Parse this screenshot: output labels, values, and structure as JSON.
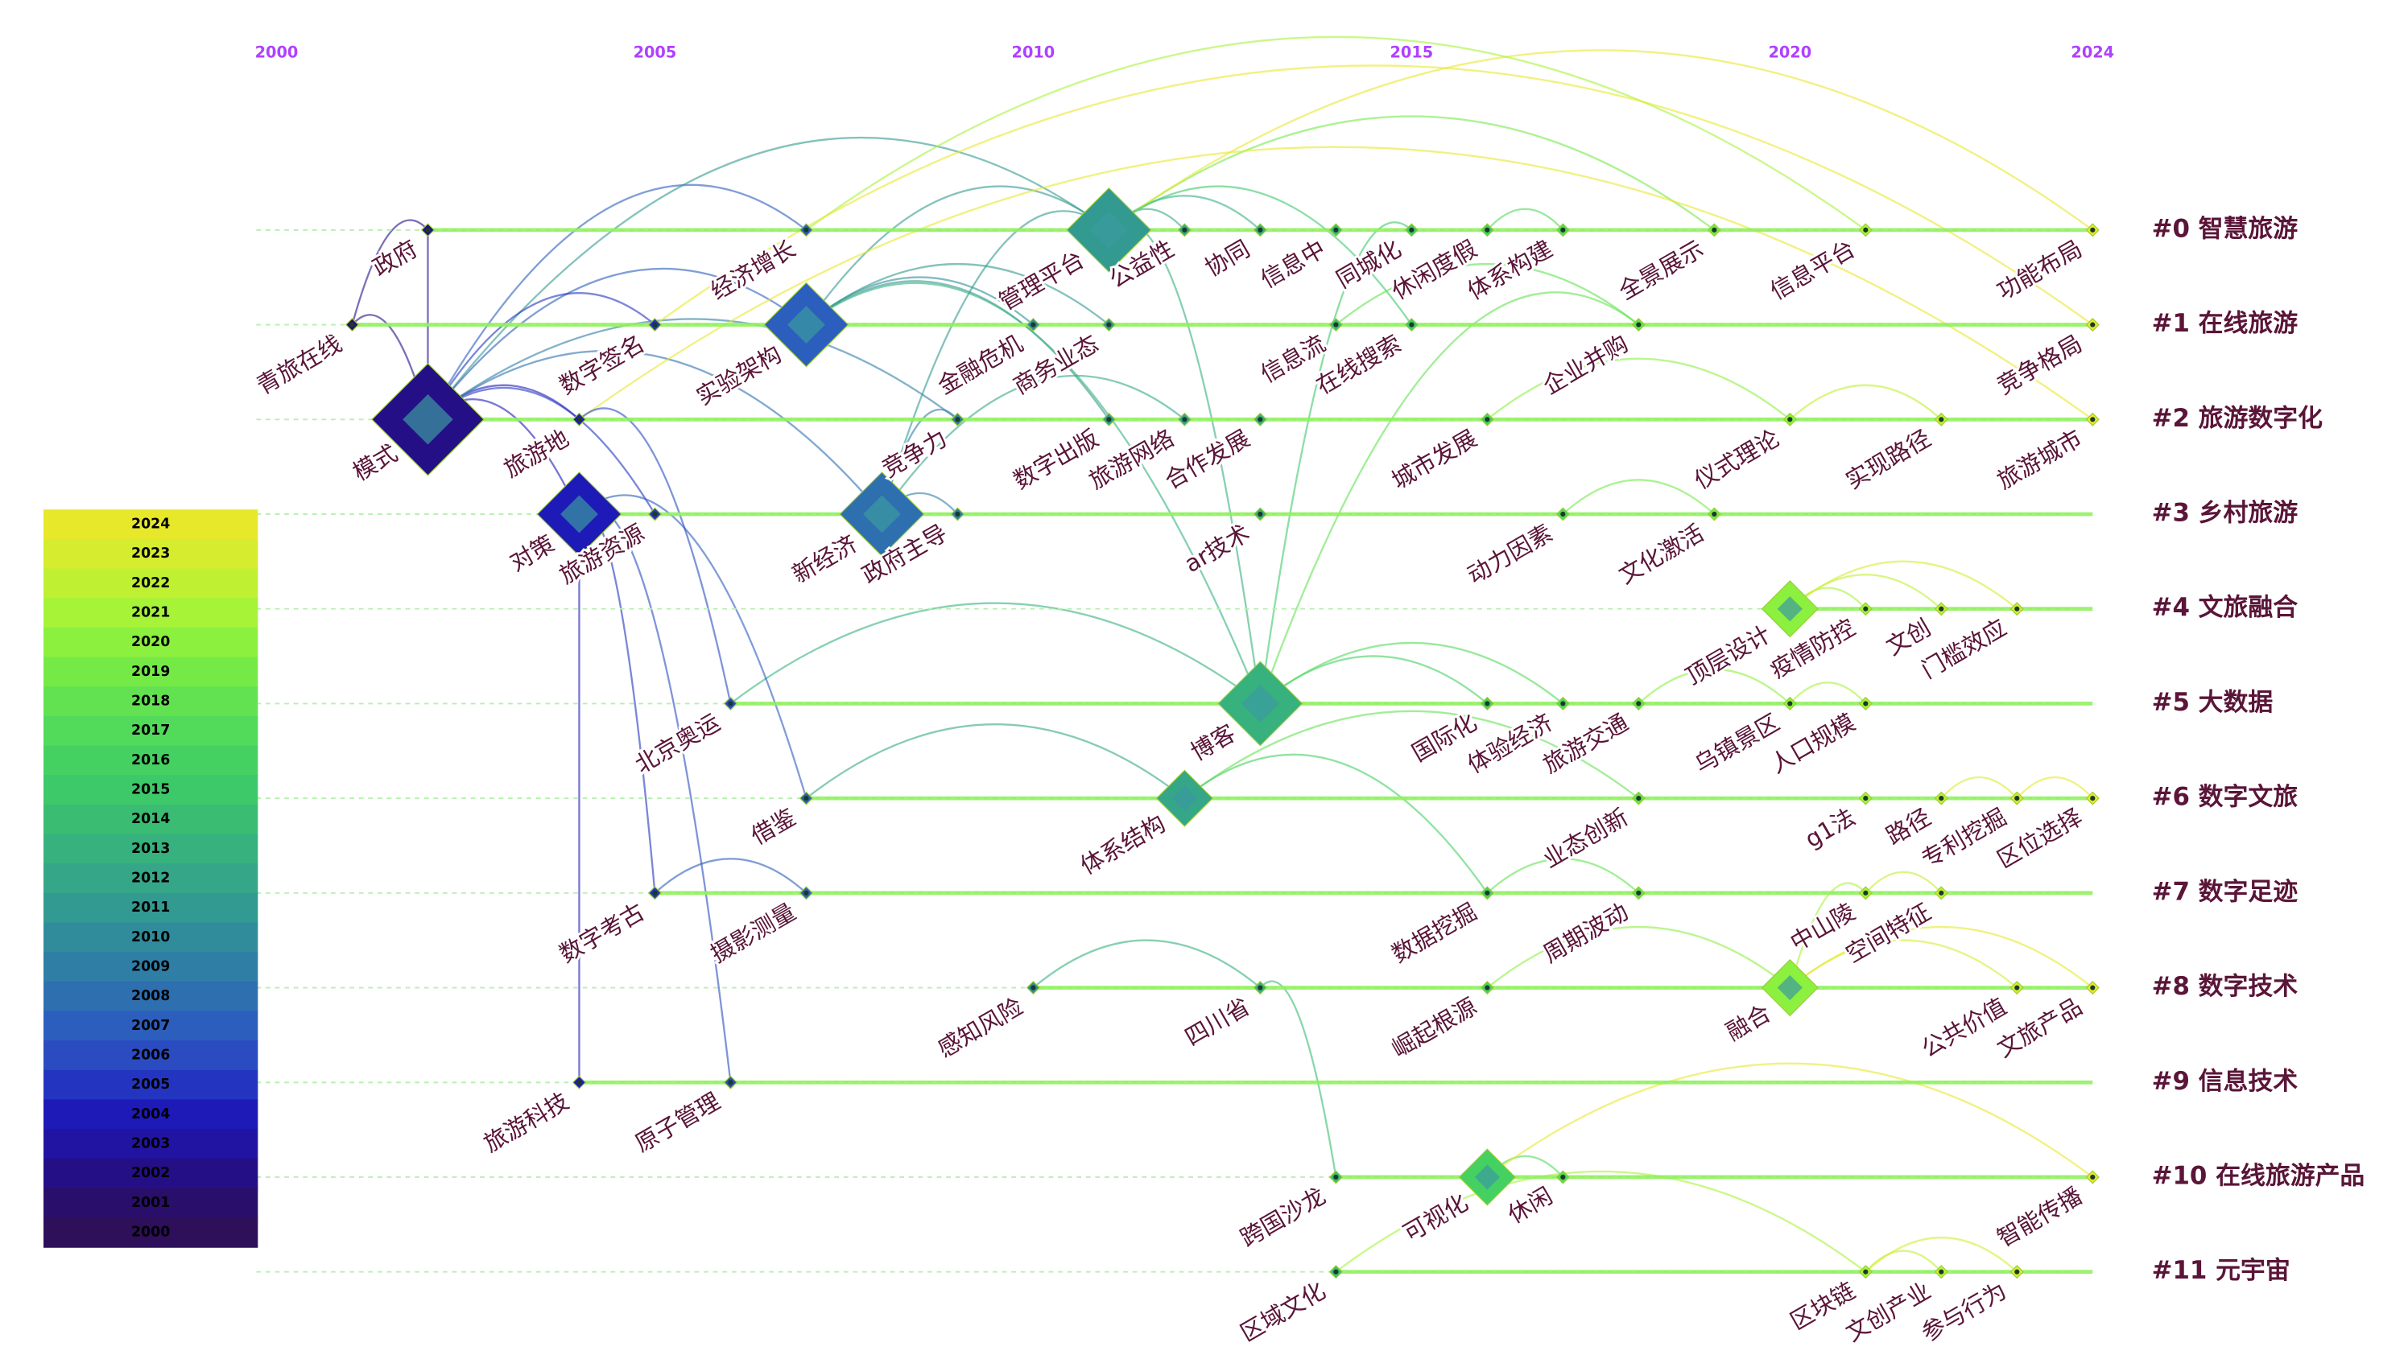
{
  "chart_data": {
    "type": "timeline",
    "xlim": [
      2000,
      2024
    ],
    "xticks": [
      2000,
      2005,
      2010,
      2015,
      2020,
      2024
    ],
    "clusters": [
      "#0 智慧旅游",
      "#1 在线旅游",
      "#2 旅游数字化",
      "#3 乡村旅游",
      "#4 文旅融合",
      "#5 大数据",
      "#6 数字文旅",
      "#7 数字足迹",
      "#8 数字技术",
      "#9 信息技术",
      "#10 在线旅游产品",
      "#11 元宇宙"
    ],
    "keywords": [
      {
        "label": "政府",
        "cluster": 0,
        "year": 2002,
        "size": 1
      },
      {
        "label": "经济增长",
        "cluster": 0,
        "year": 2007,
        "size": 1
      },
      {
        "label": "管理平台",
        "cluster": 0,
        "year": 2011,
        "size": 3
      },
      {
        "label": "公益性",
        "cluster": 0,
        "year": 2012,
        "size": 1
      },
      {
        "label": "协同",
        "cluster": 0,
        "year": 2013,
        "size": 1
      },
      {
        "label": "信息中",
        "cluster": 0,
        "year": 2014,
        "size": 1
      },
      {
        "label": "同城化",
        "cluster": 0,
        "year": 2015,
        "size": 1
      },
      {
        "label": "休闲度假",
        "cluster": 0,
        "year": 2016,
        "size": 1
      },
      {
        "label": "体系构建",
        "cluster": 0,
        "year": 2017,
        "size": 1
      },
      {
        "label": "全景展示",
        "cluster": 0,
        "year": 2019,
        "size": 1
      },
      {
        "label": "信息平台",
        "cluster": 0,
        "year": 2021,
        "size": 1
      },
      {
        "label": "功能布局",
        "cluster": 0,
        "year": 2024,
        "size": 1
      },
      {
        "label": "青旅在线",
        "cluster": 1,
        "year": 2001,
        "size": 1
      },
      {
        "label": "数字签名",
        "cluster": 1,
        "year": 2005,
        "size": 1
      },
      {
        "label": "实验架构",
        "cluster": 1,
        "year": 2007,
        "size": 3
      },
      {
        "label": "金融危机",
        "cluster": 1,
        "year": 2010,
        "size": 1
      },
      {
        "label": "商务业态",
        "cluster": 1,
        "year": 2011,
        "size": 1
      },
      {
        "label": "信息流",
        "cluster": 1,
        "year": 2014,
        "size": 1
      },
      {
        "label": "在线搜索",
        "cluster": 1,
        "year": 2015,
        "size": 1
      },
      {
        "label": "企业并购",
        "cluster": 1,
        "year": 2018,
        "size": 1
      },
      {
        "label": "竞争格局",
        "cluster": 1,
        "year": 2024,
        "size": 1
      },
      {
        "label": "模式",
        "cluster": 2,
        "year": 2002,
        "size": 4
      },
      {
        "label": "旅游地",
        "cluster": 2,
        "year": 2004,
        "size": 1
      },
      {
        "label": "竞争力",
        "cluster": 2,
        "year": 2009,
        "size": 1
      },
      {
        "label": "数字出版",
        "cluster": 2,
        "year": 2011,
        "size": 1
      },
      {
        "label": "旅游网络",
        "cluster": 2,
        "year": 2012,
        "size": 1
      },
      {
        "label": "合作发展",
        "cluster": 2,
        "year": 2013,
        "size": 1
      },
      {
        "label": "城市发展",
        "cluster": 2,
        "year": 2016,
        "size": 1
      },
      {
        "label": "仪式理论",
        "cluster": 2,
        "year": 2020,
        "size": 1
      },
      {
        "label": "实现路径",
        "cluster": 2,
        "year": 2022,
        "size": 1
      },
      {
        "label": "旅游城市",
        "cluster": 2,
        "year": 2024,
        "size": 1
      },
      {
        "label": "对策",
        "cluster": 3,
        "year": 2004,
        "size": 3
      },
      {
        "label": "旅游资源",
        "cluster": 3,
        "year": 2005,
        "size": 1
      },
      {
        "label": "新经济",
        "cluster": 3,
        "year": 2008,
        "size": 3
      },
      {
        "label": "政府主导",
        "cluster": 3,
        "year": 2009,
        "size": 1
      },
      {
        "label": "ar技术",
        "cluster": 3,
        "year": 2013,
        "size": 1
      },
      {
        "label": "动力因素",
        "cluster": 3,
        "year": 2017,
        "size": 1
      },
      {
        "label": "文化激活",
        "cluster": 3,
        "year": 2019,
        "size": 1
      },
      {
        "label": "顶层设计",
        "cluster": 4,
        "year": 2020,
        "size": 2
      },
      {
        "label": "疫情防控",
        "cluster": 4,
        "year": 2021,
        "size": 1
      },
      {
        "label": "文创",
        "cluster": 4,
        "year": 2022,
        "size": 1
      },
      {
        "label": "门槛效应",
        "cluster": 4,
        "year": 2023,
        "size": 1
      },
      {
        "label": "北京奥运",
        "cluster": 5,
        "year": 2006,
        "size": 1
      },
      {
        "label": "博客",
        "cluster": 5,
        "year": 2013,
        "size": 3
      },
      {
        "label": "国际化",
        "cluster": 5,
        "year": 2016,
        "size": 1
      },
      {
        "label": "体验经济",
        "cluster": 5,
        "year": 2017,
        "size": 1
      },
      {
        "label": "旅游交通",
        "cluster": 5,
        "year": 2018,
        "size": 1
      },
      {
        "label": "乌镇景区",
        "cluster": 5,
        "year": 2020,
        "size": 1
      },
      {
        "label": "人口规模",
        "cluster": 5,
        "year": 2021,
        "size": 1
      },
      {
        "label": "借鉴",
        "cluster": 6,
        "year": 2007,
        "size": 1
      },
      {
        "label": "体系结构",
        "cluster": 6,
        "year": 2012,
        "size": 2
      },
      {
        "label": "业态创新",
        "cluster": 6,
        "year": 2018,
        "size": 1
      },
      {
        "label": "g1法",
        "cluster": 6,
        "year": 2021,
        "size": 1
      },
      {
        "label": "路径",
        "cluster": 6,
        "year": 2022,
        "size": 1
      },
      {
        "label": "专利挖掘",
        "cluster": 6,
        "year": 2023,
        "size": 1
      },
      {
        "label": "区位选择",
        "cluster": 6,
        "year": 2024,
        "size": 1
      },
      {
        "label": "数字考古",
        "cluster": 7,
        "year": 2005,
        "size": 1
      },
      {
        "label": "摄影测量",
        "cluster": 7,
        "year": 2007,
        "size": 1
      },
      {
        "label": "数据挖掘",
        "cluster": 7,
        "year": 2016,
        "size": 1
      },
      {
        "label": "周期波动",
        "cluster": 7,
        "year": 2018,
        "size": 1
      },
      {
        "label": "中山陵",
        "cluster": 7,
        "year": 2021,
        "size": 1
      },
      {
        "label": "空间特征",
        "cluster": 7,
        "year": 2022,
        "size": 1
      },
      {
        "label": "感知风险",
        "cluster": 8,
        "year": 2010,
        "size": 1
      },
      {
        "label": "四川省",
        "cluster": 8,
        "year": 2013,
        "size": 1
      },
      {
        "label": "崛起根源",
        "cluster": 8,
        "year": 2016,
        "size": 1
      },
      {
        "label": "融合",
        "cluster": 8,
        "year": 2020,
        "size": 2
      },
      {
        "label": "公共价值",
        "cluster": 8,
        "year": 2023,
        "size": 1
      },
      {
        "label": "文旅产品",
        "cluster": 8,
        "year": 2024,
        "size": 1
      },
      {
        "label": "旅游科技",
        "cluster": 9,
        "year": 2004,
        "size": 1
      },
      {
        "label": "原子管理",
        "cluster": 9,
        "year": 2006,
        "size": 1
      },
      {
        "label": "跨国沙龙",
        "cluster": 10,
        "year": 2014,
        "size": 1
      },
      {
        "label": "可视化",
        "cluster": 10,
        "year": 2016,
        "size": 2
      },
      {
        "label": "休闲",
        "cluster": 10,
        "year": 2017,
        "size": 1
      },
      {
        "label": "智能传播",
        "cluster": 10,
        "year": 2024,
        "size": 1
      },
      {
        "label": "区域文化",
        "cluster": 11,
        "year": 2014,
        "size": 1
      },
      {
        "label": "区块链",
        "cluster": 11,
        "year": 2021,
        "size": 1
      },
      {
        "label": "文创产业",
        "cluster": 11,
        "year": 2022,
        "size": 1
      },
      {
        "label": "参与行为",
        "cluster": 11,
        "year": 2023,
        "size": 1
      }
    ],
    "links": [
      [
        21,
        0
      ],
      [
        21,
        1
      ],
      [
        21,
        2
      ],
      [
        21,
        14
      ],
      [
        21,
        13
      ],
      [
        21,
        22
      ],
      [
        21,
        33
      ],
      [
        21,
        23
      ],
      [
        21,
        31
      ],
      [
        21,
        32
      ],
      [
        12,
        21
      ],
      [
        12,
        0
      ],
      [
        14,
        2
      ],
      [
        14,
        15
      ],
      [
        14,
        16
      ],
      [
        14,
        24
      ],
      [
        2,
        3
      ],
      [
        2,
        4
      ],
      [
        2,
        9
      ],
      [
        2,
        11
      ],
      [
        2,
        18
      ],
      [
        33,
        34
      ],
      [
        33,
        23
      ],
      [
        33,
        25
      ],
      [
        33,
        2
      ],
      [
        31,
        68
      ],
      [
        31,
        69
      ],
      [
        31,
        56
      ],
      [
        43,
        44
      ],
      [
        43,
        45
      ],
      [
        43,
        6
      ],
      [
        43,
        19
      ],
      [
        50,
        51
      ],
      [
        50,
        58
      ],
      [
        65,
        66
      ],
      [
        65,
        67
      ],
      [
        65,
        60
      ],
      [
        38,
        39
      ],
      [
        38,
        40
      ],
      [
        38,
        41
      ],
      [
        71,
        72
      ],
      [
        71,
        73
      ],
      [
        70,
        63
      ],
      [
        74,
        75
      ],
      [
        75,
        76
      ],
      [
        75,
        77
      ],
      [
        62,
        63
      ],
      [
        56,
        57
      ],
      [
        49,
        50
      ],
      [
        42,
        43
      ],
      [
        1,
        10
      ],
      [
        13,
        20
      ],
      [
        22,
        30
      ],
      [
        27,
        28
      ],
      [
        36,
        37
      ],
      [
        58,
        59
      ],
      [
        28,
        29
      ],
      [
        17,
        19
      ],
      [
        7,
        8
      ],
      [
        46,
        47
      ],
      [
        47,
        48
      ],
      [
        53,
        54
      ],
      [
        54,
        55
      ],
      [
        64,
        65
      ],
      [
        61,
        60
      ],
      [
        2,
        43
      ],
      [
        14,
        43
      ],
      [
        31,
        49
      ],
      [
        22,
        42
      ]
    ],
    "colorbar": {
      "years": [
        2024,
        2023,
        2022,
        2021,
        2020,
        2019,
        2018,
        2017,
        2016,
        2015,
        2014,
        2013,
        2012,
        2011,
        2010,
        2009,
        2008,
        2007,
        2006,
        2005,
        2004,
        2003,
        2002,
        2001,
        2000
      ],
      "colors": [
        "#e8e82b",
        "#d6ec2e",
        "#c0f032",
        "#a6f338",
        "#8cf03f",
        "#75ea47",
        "#62e250",
        "#52da5a",
        "#45d162",
        "#3dc96a",
        "#3abd73",
        "#37b17d",
        "#35a687",
        "#329a90",
        "#308c9b",
        "#2f7ea5",
        "#2e6fb0",
        "#2c5ebd",
        "#2a4cc0",
        "#2335c0",
        "#1e1ab8",
        "#2214a3",
        "#250f86",
        "#2a0e6b",
        "#2d0f5a"
      ]
    }
  }
}
